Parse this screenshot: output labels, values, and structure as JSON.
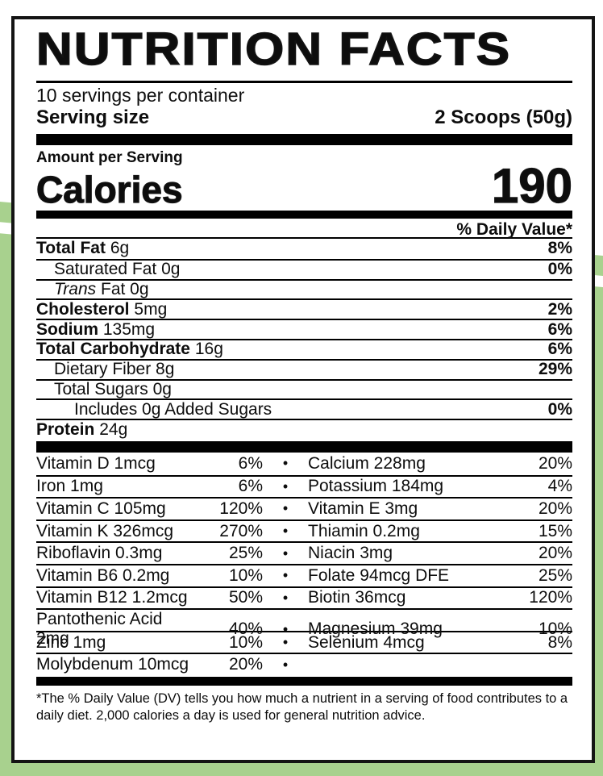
{
  "colors": {
    "background_green": "#a8d18e",
    "label_background": "#ffffff",
    "ink": "#0d0d0d"
  },
  "label": {
    "title": "NUTRITION FACTS",
    "servings_per_container": "10 servings per container",
    "serving_size": {
      "label": "Serving size",
      "value": "2 Scoops (50g)"
    },
    "amount_per_serving": "Amount per Serving",
    "calories": {
      "label": "Calories",
      "value": "190"
    },
    "daily_value_header": "% Daily Value*",
    "bullet": "•",
    "nutrients": [
      {
        "b": "Total Fat",
        "r": "6g",
        "dv": "8%"
      },
      {
        "b": "",
        "r": "Saturated Fat 0g",
        "dv": "0%"
      },
      {
        "i": "Trans",
        "r": "Fat 0g",
        "dv": ""
      },
      {
        "b": "Cholesterol",
        "r": "5mg",
        "dv": "2%"
      },
      {
        "b": "Sodium",
        "r": "135mg",
        "dv": "6%"
      },
      {
        "b": "Total Carbohydrate",
        "r": "16g",
        "dv": "6%"
      },
      {
        "b": "",
        "r": "Dietary Fiber 8g",
        "dv": "29%"
      },
      {
        "b": "",
        "r": "Total Sugars 0g",
        "dv": ""
      },
      {
        "b": "",
        "r": "Includes 0g Added Sugars",
        "dv": "0%"
      },
      {
        "b": "Protein",
        "r": "24g",
        "dv": ""
      }
    ],
    "vitamins": [
      {
        "n1": "Vitamin D 1mcg",
        "p1": "6%",
        "n2": "Calcium 228mg",
        "p2": "20%"
      },
      {
        "n1": "Iron 1mg",
        "p1": "6%",
        "n2": "Potassium 184mg",
        "p2": "4%"
      },
      {
        "n1": "Vitamin C 105mg",
        "p1": "120%",
        "n2": "Vitamin E 3mg",
        "p2": "20%"
      },
      {
        "n1": "Vitamin K 326mcg",
        "p1": "270%",
        "n2": "Thiamin 0.2mg",
        "p2": "15%"
      },
      {
        "n1": "Riboflavin 0.3mg",
        "p1": "25%",
        "n2": "Niacin 3mg",
        "p2": "20%"
      },
      {
        "n1": "Vitamin B6 0.2mg",
        "p1": "10%",
        "n2": "Folate 94mcg DFE",
        "p2": "25%"
      },
      {
        "n1": "Vitamin B12 1.2mcg",
        "p1": "50%",
        "n2": "Biotin 36mcg",
        "p2": "120%"
      },
      {
        "n1": "Pantothenic Acid 2mg",
        "p1": "40%",
        "n2": "Magnesium 39mg",
        "p2": "10%"
      },
      {
        "n1": "Zinc 1mg",
        "p1": "10%",
        "n2": "Selenium 4mcg",
        "p2": "8%"
      },
      {
        "n1": "Molybdenum 10mcg",
        "p1": "20%",
        "n2": "",
        "p2": ""
      }
    ],
    "footnote": "*The % Daily Value (DV) tells you how much a nutrient in a serving of food contributes to a daily diet. 2,000 calories a day is used for general nutrition advice."
  }
}
